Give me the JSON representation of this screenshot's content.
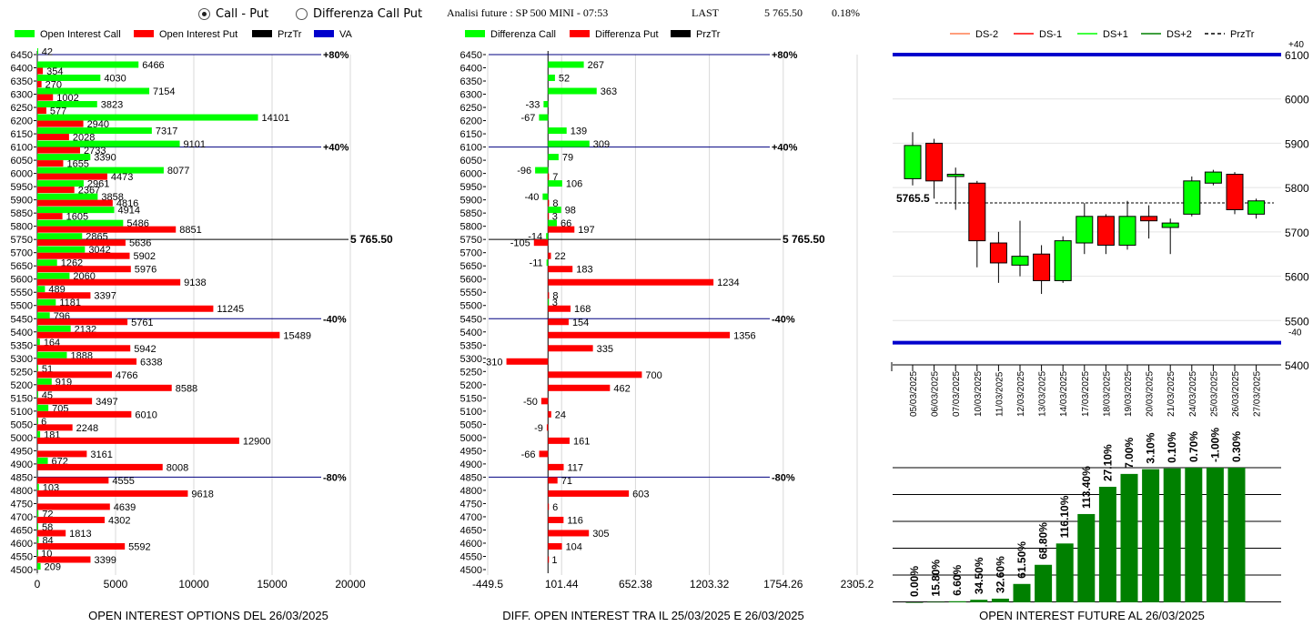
{
  "header": {
    "radio_call_put": "Call - Put",
    "radio_diff": "Differenza Call Put",
    "selected": "call_put",
    "title": "Analisi future : SP 500 MINI - 07:53",
    "last_label": "LAST",
    "last_value": "5 765.50",
    "last_change": "0.18%"
  },
  "colors": {
    "green": "#00ff00",
    "red": "#ff0000",
    "dark_green": "#008000",
    "blue": "#0000cc",
    "navy": "#000080"
  },
  "chart_data": [
    {
      "type": "bar",
      "title": "OPEN INTEREST OPTIONS DEL 26/03/2025",
      "legend": [
        "Open Interest Call",
        "Open Interest Put",
        "PrzTr",
        "VA"
      ],
      "strikes": [
        6450,
        6400,
        6350,
        6300,
        6250,
        6200,
        6150,
        6100,
        6050,
        6000,
        5950,
        5900,
        5850,
        5800,
        5750,
        5700,
        5650,
        5600,
        5550,
        5500,
        5450,
        5400,
        5350,
        5300,
        5250,
        5200,
        5150,
        5100,
        5050,
        5000,
        4950,
        4900,
        4850,
        4800,
        4750,
        4700,
        4650,
        4600,
        4550,
        4500
      ],
      "series": [
        {
          "name": "Open Interest Call",
          "values": [
            42,
            6466,
            4030,
            7154,
            3823,
            14101,
            7317,
            9101,
            3390,
            8077,
            2961,
            3858,
            4914,
            5486,
            2865,
            3042,
            1262,
            2060,
            489,
            1181,
            796,
            2132,
            164,
            1888,
            51,
            919,
            45,
            705,
            6,
            181,
            null,
            672,
            null,
            103,
            null,
            72,
            58,
            84,
            10,
            209
          ]
        },
        {
          "name": "Open Interest Put",
          "values": [
            null,
            354,
            270,
            1002,
            577,
            2940,
            2028,
            2733,
            1655,
            4473,
            2367,
            4816,
            1605,
            8851,
            5636,
            5902,
            5976,
            9138,
            3397,
            11245,
            5761,
            15489,
            5942,
            6338,
            4766,
            8588,
            3497,
            6010,
            2248,
            12900,
            3161,
            8008,
            4555,
            9618,
            4639,
            4302,
            1813,
            5592,
            3399,
            null
          ]
        }
      ],
      "xticks": [
        "0",
        "5000",
        "10000",
        "15000",
        "20000"
      ],
      "xlim": [
        0,
        20000
      ],
      "reference_lines": [
        {
          "strike": 6450,
          "label": "+80%"
        },
        {
          "strike": 6100,
          "label": "+40%"
        },
        {
          "strike": 5450,
          "label": "-40%"
        },
        {
          "strike": 4850,
          "label": "-80%"
        }
      ],
      "price_line": {
        "strike": 5750,
        "label": "5 765.50"
      }
    },
    {
      "type": "bar",
      "title": "DIFF. OPEN INTEREST TRA IL 25/03/2025 E 26/03/2025",
      "legend": [
        "Differenza Call",
        "Differenza Put",
        "PrzTr"
      ],
      "strikes": [
        6450,
        6400,
        6350,
        6300,
        6250,
        6200,
        6150,
        6100,
        6050,
        6000,
        5950,
        5900,
        5850,
        5800,
        5750,
        5700,
        5650,
        5600,
        5550,
        5500,
        5450,
        5400,
        5350,
        5300,
        5250,
        5200,
        5150,
        5100,
        5050,
        5000,
        4950,
        4900,
        4850,
        4800,
        4750,
        4700,
        4650,
        4600,
        4550,
        4500
      ],
      "series": [
        {
          "name": "Differenza Call",
          "values": [
            null,
            267,
            52,
            363,
            -33,
            -67,
            139,
            309,
            79,
            -96,
            106,
            -40,
            98,
            66,
            -14,
            null,
            -11,
            null,
            null,
            3,
            null,
            null,
            null,
            null,
            null,
            null,
            null,
            null,
            null,
            null,
            null,
            null,
            null,
            null,
            null,
            null,
            null,
            null,
            null,
            null
          ]
        },
        {
          "name": "Differenza Put",
          "values": [
            null,
            null,
            null,
            null,
            null,
            null,
            null,
            null,
            null,
            7,
            null,
            8,
            3,
            197,
            -105,
            22,
            183,
            1234,
            8,
            168,
            154,
            1356,
            335,
            -310,
            700,
            462,
            -50,
            24,
            -9,
            161,
            -66,
            117,
            71,
            603,
            6,
            116,
            305,
            104,
            1,
            null
          ]
        }
      ],
      "xticks": [
        "-449.5",
        "101.44",
        "652.38",
        "1203.32",
        "1754.26",
        "2305.2"
      ],
      "xlim": [
        -449.5,
        2305.2
      ],
      "reference_lines": [
        {
          "strike": 6450,
          "label": "+80%"
        },
        {
          "strike": 6100,
          "label": "+40%"
        },
        {
          "strike": 5450,
          "label": "-40%"
        },
        {
          "strike": 4850,
          "label": "-80%"
        }
      ],
      "price_line": {
        "strike": 5750,
        "label": "5 765.50"
      }
    },
    {
      "type": "candlestick",
      "legend": [
        "DS-2",
        "DS-1",
        "DS+1",
        "DS+2",
        "PrzTr"
      ],
      "dates": [
        "05/03/2025",
        "06/03/2025",
        "07/03/2025",
        "10/03/2025",
        "11/03/2025",
        "12/03/2025",
        "13/03/2025",
        "14/03/2025",
        "17/03/2025",
        "18/03/2025",
        "19/03/2025",
        "20/03/2025",
        "21/03/2025",
        "24/03/2025",
        "25/03/2025",
        "26/03/2025",
        "27/03/2025"
      ],
      "open": [
        5820,
        5900,
        5825,
        5810,
        5675,
        5625,
        5650,
        5590,
        5675,
        5735,
        5670,
        5735,
        5710,
        5740,
        5810,
        5830,
        5740
      ],
      "close": [
        5895,
        5815,
        5830,
        5680,
        5630,
        5645,
        5590,
        5680,
        5735,
        5670,
        5735,
        5725,
        5720,
        5815,
        5835,
        5750,
        5770
      ],
      "high": [
        5925,
        5910,
        5845,
        5815,
        5700,
        5725,
        5670,
        5690,
        5765,
        5740,
        5770,
        5760,
        5730,
        5825,
        5840,
        5835,
        5775
      ],
      "low": [
        5805,
        5775,
        5750,
        5620,
        5585,
        5600,
        5560,
        5585,
        5650,
        5650,
        5660,
        5685,
        5650,
        5735,
        5805,
        5740,
        5730
      ],
      "yticks": [
        "6100",
        "6000",
        "5900",
        "5800",
        "5700",
        "5600",
        "5500",
        "5400"
      ],
      "ylim": [
        5400,
        6100
      ],
      "bands": [
        {
          "level": 6100,
          "label": "+40"
        },
        {
          "level": 5450,
          "label": "-40"
        }
      ],
      "price_line": {
        "value": 5765.5,
        "label": "5765.5"
      }
    },
    {
      "type": "bar",
      "title": "OPEN INTEREST FUTURE AL 26/03/2025",
      "categories": [
        "05/03/2025",
        "06/03/2025",
        "07/03/2025",
        "10/03/2025",
        "11/03/2025",
        "12/03/2025",
        "13/03/2025",
        "14/03/2025",
        "17/03/2025",
        "18/03/2025",
        "19/03/2025",
        "20/03/2025",
        "21/03/2025",
        "24/03/2025",
        "25/03/2025",
        "26/03/2025",
        "27/03/2025"
      ],
      "values": [
        0.0,
        15.8,
        6.6,
        34.5,
        32.6,
        61.5,
        68.8,
        116.1,
        113.4,
        27.1,
        7.0,
        3.1,
        0.1,
        0.7,
        -1.0,
        0.3,
        null
      ],
      "levels": [
        0,
        1,
        3,
        7,
        10,
        50,
        102,
        160,
        240,
        314,
        349,
        362,
        364,
        366,
        366,
        366,
        null
      ],
      "labels": [
        "0.00%",
        "15.80%",
        "6.60%",
        "34.50%",
        "32.60%",
        "61.50%",
        "68.80%",
        "116.10%",
        "113.40%",
        "27.10%",
        "7.00%",
        "3.10%",
        "0.10%",
        "0.70%",
        "-1.00%",
        "0.30%",
        ""
      ]
    }
  ]
}
